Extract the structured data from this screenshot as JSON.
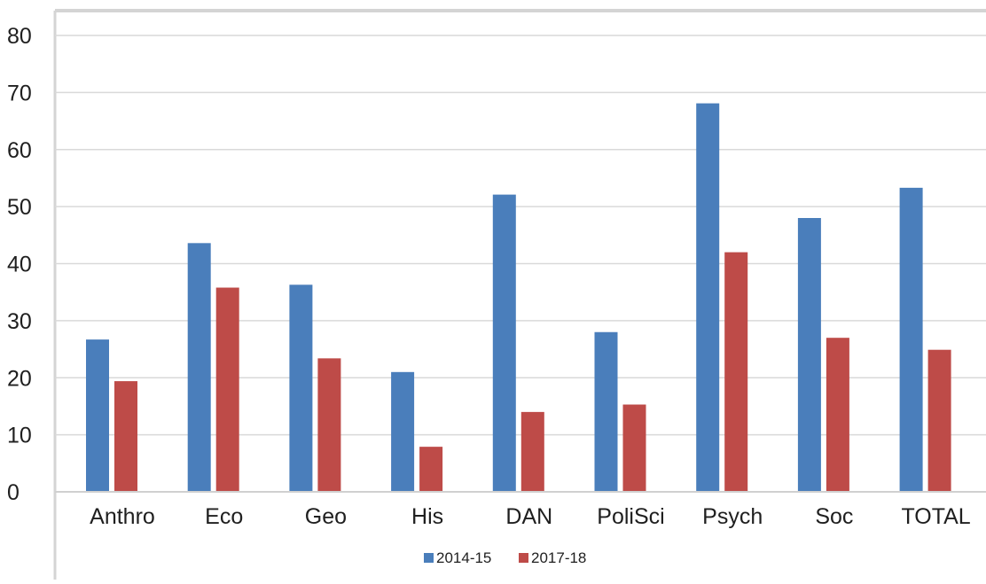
{
  "chart_data": {
    "type": "bar",
    "categories": [
      "Anthro",
      "Eco",
      "Geo",
      "His",
      "DAN",
      "PoliSci",
      "Psych",
      "Soc",
      "TOTAL"
    ],
    "series": [
      {
        "name": "2014-15",
        "values": [
          26.7,
          43.6,
          36.3,
          21.0,
          52.1,
          28.0,
          68.1,
          48.0,
          53.3
        ]
      },
      {
        "name": "2017-18",
        "values": [
          19.4,
          35.8,
          23.4,
          7.9,
          14.0,
          15.3,
          42.0,
          27.0,
          24.9
        ]
      }
    ],
    "ylim": [
      0,
      80
    ],
    "yticks": [
      "0",
      "10",
      "20",
      "30",
      "40",
      "50",
      "60",
      "70",
      "80"
    ],
    "grid": true,
    "legend_position": "bottom",
    "colors": {
      "2014-15": "#4a7ebb",
      "2017-18": "#be4b48"
    }
  }
}
